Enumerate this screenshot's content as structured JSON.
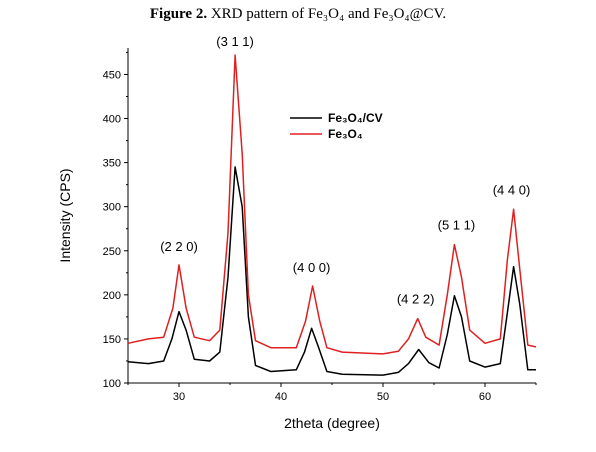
{
  "caption": {
    "prefix": "Figure 2.",
    "text": "XRD pattern of Fe₃O₄ and Fe₃O₄@CV."
  },
  "chart_data": {
    "type": "line",
    "xlabel": "2theta (degree)",
    "ylabel": "Intensity (CPS)",
    "xlim": [
      25,
      65
    ],
    "ylim": [
      100,
      480
    ],
    "xticks": [
      30,
      40,
      50,
      60
    ],
    "yticks": [
      100,
      150,
      200,
      250,
      300,
      350,
      400,
      450
    ],
    "grid": false,
    "legend_position": "top-center",
    "series": [
      {
        "name": "Fe₃O₄/CV",
        "color": "#000000",
        "points": [
          [
            25,
            124
          ],
          [
            27,
            122
          ],
          [
            28.5,
            125
          ],
          [
            29.3,
            150
          ],
          [
            30,
            181
          ],
          [
            30.7,
            160
          ],
          [
            31.5,
            127
          ],
          [
            33,
            125
          ],
          [
            34,
            135
          ],
          [
            34.8,
            220
          ],
          [
            35.5,
            345
          ],
          [
            36.2,
            300
          ],
          [
            36.8,
            175
          ],
          [
            37.5,
            120
          ],
          [
            39,
            113
          ],
          [
            41.5,
            115
          ],
          [
            42.3,
            135
          ],
          [
            43,
            162
          ],
          [
            43.7,
            140
          ],
          [
            44.5,
            113
          ],
          [
            46,
            110
          ],
          [
            50,
            109
          ],
          [
            51.5,
            112
          ],
          [
            52.5,
            122
          ],
          [
            53.5,
            138
          ],
          [
            54.5,
            123
          ],
          [
            55.5,
            117
          ],
          [
            56.3,
            155
          ],
          [
            57,
            199
          ],
          [
            57.7,
            175
          ],
          [
            58.5,
            125
          ],
          [
            60,
            118
          ],
          [
            61.5,
            122
          ],
          [
            62.2,
            180
          ],
          [
            62.8,
            232
          ],
          [
            63.4,
            190
          ],
          [
            64.2,
            115
          ],
          [
            65,
            115
          ]
        ]
      },
      {
        "name": "Fe₃O₄",
        "color": "#e02020",
        "points": [
          [
            25,
            145
          ],
          [
            27,
            150
          ],
          [
            28.5,
            152
          ],
          [
            29.4,
            185
          ],
          [
            30,
            234
          ],
          [
            30.7,
            185
          ],
          [
            31.5,
            152
          ],
          [
            33,
            148
          ],
          [
            34,
            160
          ],
          [
            34.8,
            270
          ],
          [
            35.5,
            472
          ],
          [
            36.2,
            360
          ],
          [
            36.8,
            200
          ],
          [
            37.5,
            148
          ],
          [
            39,
            140
          ],
          [
            41.5,
            140
          ],
          [
            42.4,
            170
          ],
          [
            43.1,
            210
          ],
          [
            43.8,
            170
          ],
          [
            44.5,
            140
          ],
          [
            46,
            135
          ],
          [
            50,
            133
          ],
          [
            51.5,
            136
          ],
          [
            52.5,
            150
          ],
          [
            53.4,
            173
          ],
          [
            54.2,
            152
          ],
          [
            55.5,
            143
          ],
          [
            56.3,
            200
          ],
          [
            57,
            257
          ],
          [
            57.7,
            220
          ],
          [
            58.5,
            160
          ],
          [
            60,
            145
          ],
          [
            61.5,
            150
          ],
          [
            62.2,
            240
          ],
          [
            62.8,
            297
          ],
          [
            63.4,
            230
          ],
          [
            64.2,
            143
          ],
          [
            65,
            141
          ]
        ]
      }
    ],
    "annotations": [
      {
        "text": "(2 2 0)",
        "x": 30,
        "y": 250
      },
      {
        "text": "(3 1 1)",
        "x": 35.5,
        "y": 482
      },
      {
        "text": "(4 0 0)",
        "x": 43,
        "y": 226
      },
      {
        "text": "(4 2 2)",
        "x": 53.2,
        "y": 190
      },
      {
        "text": "(5 1 1)",
        "x": 57.2,
        "y": 274
      },
      {
        "text": "(4 4 0)",
        "x": 62.6,
        "y": 314
      }
    ]
  }
}
